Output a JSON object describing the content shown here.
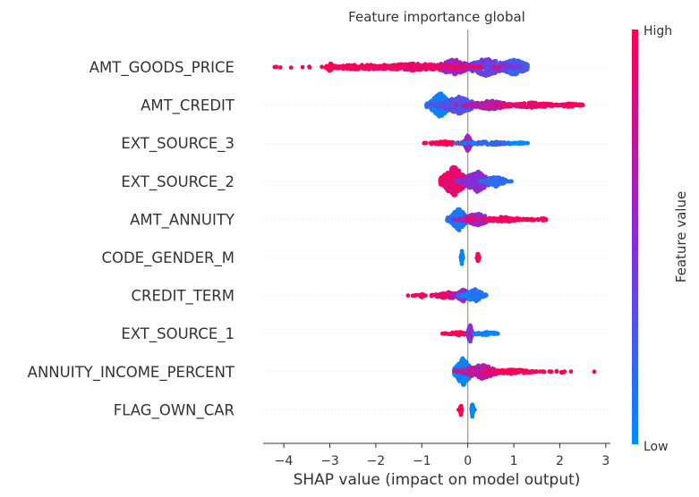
{
  "chart_data": {
    "type": "scatter",
    "subtype": "shap-beeswarm",
    "title": "Feature importance global",
    "xlabel": "SHAP value (impact on model output)",
    "xlim": [
      -4.45,
      3.1
    ],
    "xticks": [
      -4,
      -3,
      -2,
      -1,
      0,
      1,
      2,
      3
    ],
    "features": [
      {
        "name": "AMT_GOODS_PRICE",
        "range": [
          -4.2,
          1.3
        ]
      },
      {
        "name": "AMT_CREDIT",
        "range": [
          -0.9,
          2.5
        ]
      },
      {
        "name": "EXT_SOURCE_3",
        "range": [
          -0.95,
          1.3
        ]
      },
      {
        "name": "EXT_SOURCE_2",
        "range": [
          -0.6,
          0.95
        ]
      },
      {
        "name": "AMT_ANNUITY",
        "range": [
          -0.45,
          1.7
        ]
      },
      {
        "name": "CODE_GENDER_M",
        "range": [
          -0.15,
          0.25
        ]
      },
      {
        "name": "CREDIT_TERM",
        "range": [
          -1.3,
          0.4
        ]
      },
      {
        "name": "EXT_SOURCE_1",
        "range": [
          -0.55,
          0.65
        ]
      },
      {
        "name": "ANNUITY_INCOME_PERCENT",
        "range": [
          -0.3,
          2.75
        ]
      },
      {
        "name": "FLAG_OWN_CAR",
        "range": [
          -0.2,
          0.15
        ]
      }
    ],
    "colorbar": {
      "label": "Feature value",
      "high_label": "High",
      "low_label": "Low",
      "high_color": "#ff0052",
      "mid_color": "#8a2bd6",
      "low_color": "#008bfb"
    },
    "grid": false,
    "zero_line": true
  }
}
